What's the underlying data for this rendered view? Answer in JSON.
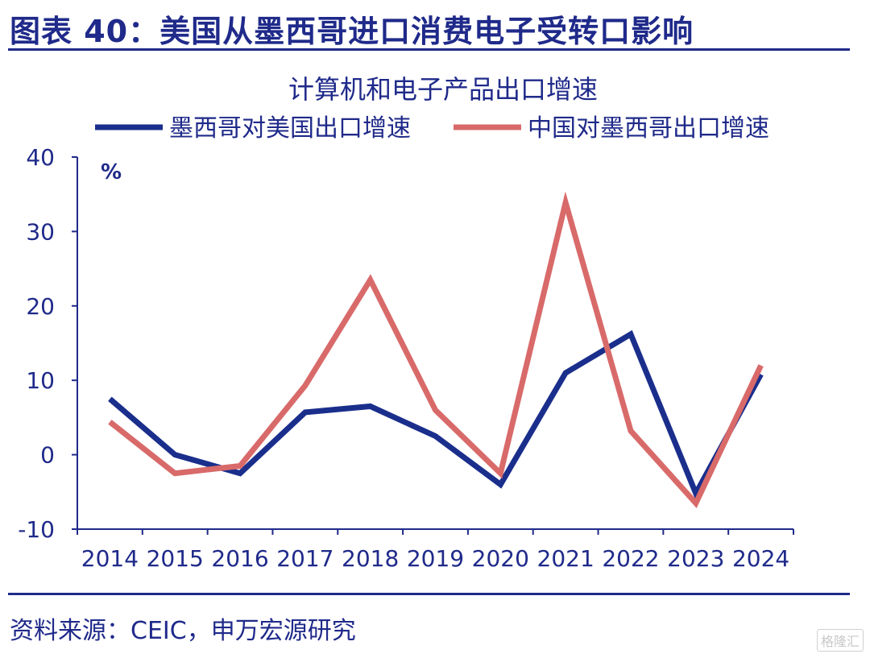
{
  "figure": {
    "title": "图表 40：美国从墨西哥进口消费电子受转口影响",
    "source": "资料来源：CEIC，申万宏源研究",
    "watermark": "格隆汇"
  },
  "chart_data": {
    "type": "line",
    "title": "计算机和电子产品出口增速",
    "ylabel": "%",
    "xlabel": "",
    "ylim": [
      -10,
      40
    ],
    "yticks": [
      -10,
      0,
      10,
      20,
      30,
      40
    ],
    "categories": [
      "2014",
      "2015",
      "2016",
      "2017",
      "2018",
      "2019",
      "2020",
      "2021",
      "2022",
      "2023",
      "2024"
    ],
    "legend_position": "top",
    "grid": false,
    "series": [
      {
        "name": "墨西哥对美国出口增速",
        "color": "#1a2e8c",
        "values": [
          7.5,
          0,
          -2.5,
          5.7,
          6.5,
          2.5,
          -4.0,
          11.0,
          16.2,
          -5.2,
          10.8
        ]
      },
      {
        "name": "中国对墨西哥出口增速",
        "color": "#d96a6a",
        "values": [
          4.4,
          -2.5,
          -1.5,
          9.3,
          23.5,
          6.0,
          -2.5,
          33.9,
          3.2,
          -6.5,
          12.0
        ]
      }
    ]
  }
}
